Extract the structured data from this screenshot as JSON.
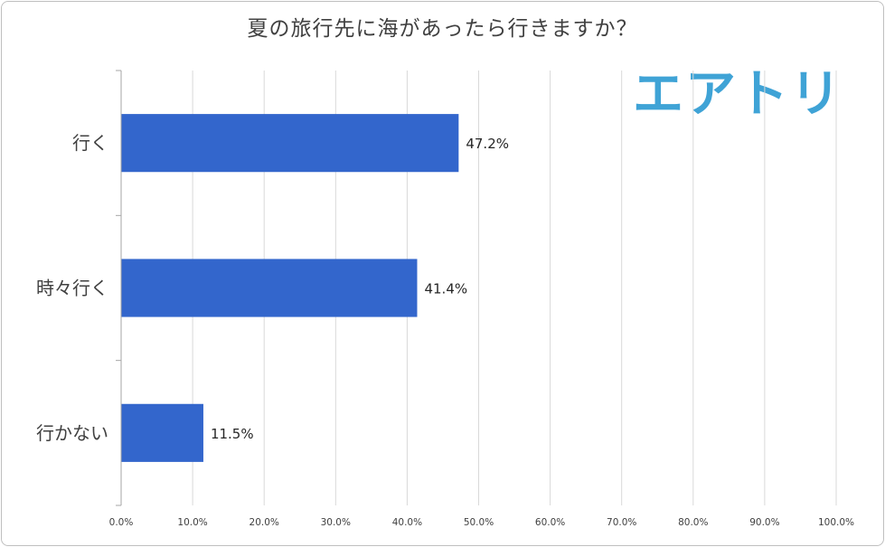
{
  "chart_data": {
    "type": "bar",
    "orientation": "horizontal",
    "title": "夏の旅行先に海があったら行きますか？",
    "categories": [
      "行く",
      "時々行く",
      "行かない"
    ],
    "values": [
      47.2,
      41.4,
      11.5
    ],
    "value_labels": [
      "47.2%",
      "41.4%",
      "11.5%"
    ],
    "xlim": [
      0,
      100
    ],
    "xticks": [
      "0.0%",
      "10.0%",
      "20.0%",
      "30.0%",
      "40.0%",
      "50.0%",
      "60.0%",
      "70.0%",
      "80.0%",
      "90.0%",
      "100.0%"
    ],
    "grid": true,
    "bar_color": "#3366cc",
    "xlabel": "",
    "ylabel": ""
  },
  "logo_text": "エアトリ",
  "logo_color": "#3fa3d6"
}
